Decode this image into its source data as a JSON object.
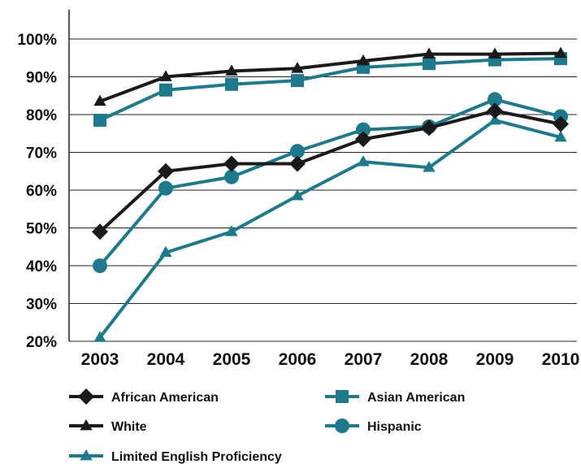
{
  "chart_data": {
    "type": "line",
    "x": [
      "2003",
      "2004",
      "2005",
      "2006",
      "2007",
      "2008",
      "2009",
      "2010"
    ],
    "ylim": [
      20,
      100
    ],
    "yticks": [
      "20%",
      "30%",
      "40%",
      "50%",
      "60%",
      "70%",
      "80%",
      "90%",
      "100%"
    ],
    "ytick_values": [
      20,
      30,
      40,
      50,
      60,
      70,
      80,
      90,
      100
    ],
    "grid": "horizontal",
    "legend_position": "bottom",
    "series": [
      {
        "name": "African American",
        "marker": "diamond",
        "color": "#1a1a1a",
        "values": [
          49,
          65,
          67,
          67,
          73.5,
          76.5,
          81,
          77.5
        ]
      },
      {
        "name": "Asian American",
        "marker": "square",
        "color": "#1c7a8c",
        "values": [
          78.5,
          86.5,
          88,
          89,
          92.5,
          93.5,
          94.5,
          94.8
        ]
      },
      {
        "name": "White",
        "marker": "triangle",
        "color": "#1a1a1a",
        "values": [
          83.5,
          90,
          91.5,
          92.2,
          94.2,
          96,
          96,
          96.2
        ]
      },
      {
        "name": "Hispanic",
        "marker": "circle",
        "color": "#1c7a8c",
        "values": [
          40,
          60.5,
          63.5,
          70.3,
          76,
          76.8,
          84,
          79.5
        ]
      },
      {
        "name": "Limited English Proficiency",
        "marker": "triangle",
        "color": "#1c7a8c",
        "values": [
          21,
          43.5,
          49,
          58.5,
          67.5,
          66,
          78.5,
          74
        ]
      }
    ]
  }
}
